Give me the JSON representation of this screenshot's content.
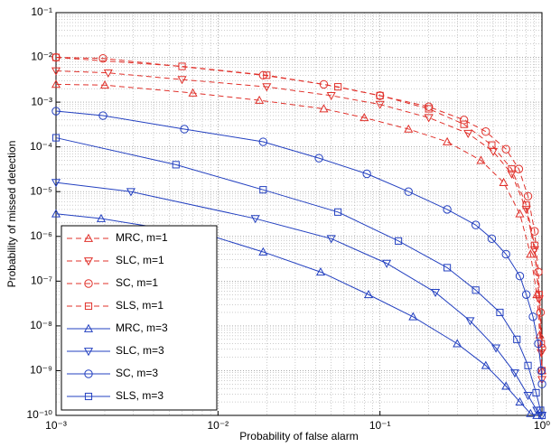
{
  "chart_data": {
    "type": "line",
    "xlabel": "Probability of false alarm",
    "ylabel": "Probability of missed detection",
    "xscale": "log",
    "yscale": "log",
    "grid": true,
    "minor_grid": true,
    "legend": "lower left",
    "xlim": [
      0.001,
      1
    ],
    "ylim": [
      1e-10,
      0.1
    ],
    "xticks": [
      {
        "value": 0.001,
        "label": "10⁻³"
      },
      {
        "value": 0.01,
        "label": "10⁻²"
      },
      {
        "value": 0.1,
        "label": "10⁻¹"
      },
      {
        "value": 1,
        "label": "10⁰"
      }
    ],
    "yticks": [
      {
        "value": 1e-10,
        "label": "10⁻¹⁰"
      },
      {
        "value": 1e-09,
        "label": "10⁻⁹"
      },
      {
        "value": 1e-08,
        "label": "10⁻⁸"
      },
      {
        "value": 1e-07,
        "label": "10⁻⁷"
      },
      {
        "value": 1e-06,
        "label": "10⁻⁶"
      },
      {
        "value": 1e-05,
        "label": "10⁻⁵"
      },
      {
        "value": 0.0001,
        "label": "10⁻⁴"
      },
      {
        "value": 0.001,
        "label": "10⁻³"
      },
      {
        "value": 0.01,
        "label": "10⁻²"
      },
      {
        "value": 0.1,
        "label": "10⁻¹"
      }
    ],
    "series": [
      {
        "name": "MRC, m=1",
        "color": "#e0302a",
        "linestyle": "dashed",
        "marker": "triangle-up",
        "x": [
          0.001,
          0.002,
          0.007,
          0.018,
          0.045,
          0.08,
          0.15,
          0.26,
          0.42,
          0.58,
          0.73,
          0.85,
          0.93,
          0.97,
          1.0
        ],
        "values": [
          0.0025,
          0.0024,
          0.0016,
          0.0011,
          0.00071,
          0.00045,
          0.00025,
          0.00013,
          5e-05,
          1.6e-05,
          3.2e-06,
          4e-07,
          5e-08,
          6.3e-09,
          1e-09
        ]
      },
      {
        "name": "SLC, m=1",
        "color": "#e0302a",
        "linestyle": "dashed",
        "marker": "triangle-down",
        "x": [
          0.001,
          0.0021,
          0.006,
          0.02,
          0.05,
          0.1,
          0.2,
          0.35,
          0.5,
          0.65,
          0.8,
          0.9,
          0.96,
          0.99,
          1.0
        ],
        "values": [
          0.005,
          0.0045,
          0.0032,
          0.0022,
          0.0014,
          0.00089,
          0.00045,
          0.0002,
          7.9e-05,
          2.5e-05,
          4e-06,
          5e-07,
          4e-08,
          2.5e-09,
          6.3e-10
        ]
      },
      {
        "name": "SC, m=1",
        "color": "#e0302a",
        "linestyle": "dashed",
        "marker": "circle",
        "x": [
          0.001,
          0.00195,
          0.019,
          0.045,
          0.1,
          0.2,
          0.33,
          0.45,
          0.6,
          0.72,
          0.82,
          0.9,
          0.95,
          0.98,
          1.0
        ],
        "values": [
          0.01,
          0.0095,
          0.004,
          0.0025,
          0.0014,
          0.00079,
          0.0004,
          0.00022,
          8.9e-05,
          3.2e-05,
          7.9e-06,
          1.3e-06,
          1.6e-07,
          2e-08,
          3.2e-09
        ]
      },
      {
        "name": "SLS, m=1",
        "color": "#e0302a",
        "linestyle": "dashed",
        "marker": "square",
        "x": [
          0.001,
          0.006,
          0.02,
          0.055,
          0.1,
          0.2,
          0.33,
          0.49,
          0.65,
          0.8,
          0.9,
          0.96,
          0.99,
          1.0
        ],
        "values": [
          0.01,
          0.0063,
          0.004,
          0.0022,
          0.0014,
          0.00071,
          0.00032,
          0.00011,
          3.2e-05,
          5e-06,
          6.3e-07,
          5e-08,
          4e-09,
          1e-09
        ]
      },
      {
        "name": "MRC, m=3",
        "color": "#2340c0",
        "linestyle": "solid",
        "marker": "triangle-up",
        "x": [
          0.001,
          0.0019,
          0.0093,
          0.019,
          0.043,
          0.085,
          0.16,
          0.3,
          0.45,
          0.6,
          0.73,
          0.85,
          0.93
        ],
        "values": [
          3.2e-06,
          2.5e-06,
          1e-06,
          4.5e-07,
          1.6e-07,
          5e-08,
          1.6e-08,
          4e-09,
          1.3e-09,
          4.5e-10,
          2e-10,
          1.1e-10,
          1e-10
        ]
      },
      {
        "name": "SLC, m=3",
        "color": "#2340c0",
        "linestyle": "solid",
        "marker": "triangle-down",
        "x": [
          0.001,
          0.0029,
          0.017,
          0.05,
          0.11,
          0.22,
          0.36,
          0.52,
          0.68,
          0.82,
          0.93,
          1.0
        ],
        "values": [
          1.6e-05,
          1e-05,
          2.5e-06,
          8.9e-07,
          2.5e-07,
          5.6e-08,
          1.3e-08,
          3.2e-09,
          8.9e-10,
          2.8e-10,
          1.3e-10,
          1e-10
        ]
      },
      {
        "name": "SC, m=3",
        "color": "#2340c0",
        "linestyle": "solid",
        "marker": "circle",
        "x": [
          0.001,
          0.00195,
          0.0062,
          0.019,
          0.042,
          0.083,
          0.15,
          0.26,
          0.39,
          0.49,
          0.6,
          0.73,
          0.8,
          0.88,
          0.95,
          0.99,
          1.0
        ],
        "values": [
          0.00063,
          0.0005,
          0.00025,
          0.00013,
          5.6e-05,
          2.5e-05,
          1e-05,
          4e-06,
          1.8e-06,
          8.9e-07,
          4e-07,
          1.3e-07,
          5e-08,
          1.6e-08,
          4e-09,
          1e-09,
          5e-10
        ]
      },
      {
        "name": "SLS, m=3",
        "color": "#2340c0",
        "linestyle": "solid",
        "marker": "square",
        "x": [
          0.001,
          0.0055,
          0.019,
          0.055,
          0.13,
          0.26,
          0.39,
          0.55,
          0.7,
          0.82,
          0.92,
          0.98,
          1.0
        ],
        "values": [
          0.00016,
          4e-05,
          1.1e-05,
          3.5e-06,
          7.9e-07,
          2e-07,
          6.3e-08,
          2e-08,
          5e-09,
          1.3e-09,
          3.2e-10,
          1.3e-10,
          1e-10
        ]
      }
    ]
  }
}
